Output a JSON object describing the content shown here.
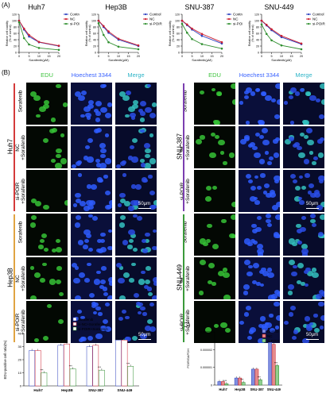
{
  "panels": {
    "a": "(A)",
    "b": "(B)",
    "c": "(C)"
  },
  "line_legend": [
    "Control",
    "NC",
    "si-POIR"
  ],
  "colors": {
    "control": "#2b3fbf",
    "nc": "#cc1f2f",
    "sipoir": "#2f8f2f",
    "edu": "#3ec43e",
    "hoechst": "#3a63ff",
    "merge": "#2fb5c8"
  },
  "chart_data": [
    {
      "type": "line",
      "title": "Huh7",
      "xlabel": "Sorafenib(μM)",
      "ylabel": "Relative cell viability (% of control)",
      "x": [
        0,
        2.5,
        5,
        10,
        20
      ],
      "xticks": [
        "0",
        "5",
        "10",
        "15",
        "20"
      ],
      "yticks": [
        "0",
        "20",
        "40",
        "60",
        "80",
        "100",
        "120"
      ],
      "xlim": [
        0,
        20
      ],
      "ylim": [
        0,
        120
      ],
      "series": [
        {
          "name": "Control",
          "values": [
            100,
            72,
            50,
            32,
            20
          ]
        },
        {
          "name": "NC",
          "values": [
            100,
            75,
            55,
            33,
            21
          ]
        },
        {
          "name": "si-POIR",
          "values": [
            95,
            45,
            25,
            14,
            8
          ]
        }
      ]
    },
    {
      "type": "line",
      "title": "Hep3B",
      "xlabel": "Sorafenib(μM)",
      "ylabel": "Relative cell viability (% of control)",
      "x": [
        0,
        2.5,
        5,
        10,
        20
      ],
      "xticks": [
        "0",
        "5",
        "10",
        "15",
        "20"
      ],
      "yticks": [
        "0",
        "20",
        "40",
        "60",
        "80",
        "100",
        "120"
      ],
      "xlim": [
        0,
        20
      ],
      "ylim": [
        0,
        120
      ],
      "series": [
        {
          "name": "Control",
          "values": [
            100,
            80,
            62,
            40,
            20
          ]
        },
        {
          "name": "NC",
          "values": [
            100,
            83,
            66,
            43,
            22
          ]
        },
        {
          "name": "si-POIR",
          "values": [
            92,
            55,
            32,
            18,
            10
          ]
        }
      ]
    },
    {
      "type": "line",
      "title": "SNU-387",
      "xlabel": "Sorafenib(μM)",
      "ylabel": "Relative cell viability (% of control)",
      "x": [
        0,
        2.5,
        5,
        10,
        20
      ],
      "xticks": [
        "0",
        "5",
        "10",
        "15",
        "20"
      ],
      "yticks": [
        "0",
        "20",
        "40",
        "60",
        "80",
        "100",
        "120"
      ],
      "xlim": [
        0,
        20
      ],
      "ylim": [
        0,
        120
      ],
      "series": [
        {
          "name": "Control",
          "values": [
            100,
            86,
            72,
            52,
            28
          ]
        },
        {
          "name": "NC",
          "values": [
            100,
            88,
            75,
            58,
            32
          ]
        },
        {
          "name": "si-POIR",
          "values": [
            90,
            62,
            42,
            26,
            12
          ]
        }
      ]
    },
    {
      "type": "line",
      "title": "SNU-449",
      "xlabel": "Sorafenib(μM)",
      "ylabel": "Relative cell viability (% of control)",
      "x": [
        0,
        2.5,
        5,
        10,
        20
      ],
      "xticks": [
        "0",
        "5",
        "10",
        "15",
        "20"
      ],
      "yticks": [
        "0",
        "20",
        "40",
        "60",
        "80",
        "100",
        "120"
      ],
      "xlim": [
        0,
        20
      ],
      "ylim": [
        0,
        120
      ],
      "series": [
        {
          "name": "Control",
          "values": [
            100,
            85,
            70,
            48,
            26
          ]
        },
        {
          "name": "NC",
          "values": [
            100,
            87,
            73,
            52,
            28
          ]
        },
        {
          "name": "si-POIR",
          "values": [
            88,
            58,
            38,
            22,
            10
          ]
        }
      ]
    },
    {
      "type": "bar",
      "title": "",
      "ylabel": "EDU-positive cell ratio(%)",
      "categories": [
        "Huh7",
        "Hep3B",
        "SNU-387",
        "SNU-449"
      ],
      "yticks": [
        "0",
        "10",
        "20",
        "30",
        "40"
      ],
      "ylim": [
        0,
        40
      ],
      "series": [
        {
          "name": "Sorafenib",
          "values": [
            27,
            31,
            30,
            35
          ]
        },
        {
          "name": "si-NC+Sorafenib",
          "values": [
            27,
            32,
            31,
            35
          ]
        },
        {
          "name": "si-POIR+Sorafenib",
          "values": [
            10,
            13,
            12,
            15
          ]
        }
      ],
      "annotations": [
        "***",
        "***",
        "***",
        "***"
      ]
    },
    {
      "type": "bar",
      "title": "",
      "ylabel": "POIR/GAPDH",
      "categories": [
        "Huh7",
        "Hep3B",
        "SNU-387",
        "SNU-449"
      ],
      "yticks": [
        "0",
        "0.000001",
        "0.000002",
        "0.000003"
      ],
      "ylim": [
        0,
        3e-06
      ],
      "series": [
        {
          "name": "Control",
          "values": [
            2e-07,
            4e-07,
            9e-07,
            2.4e-06
          ]
        },
        {
          "name": "NC",
          "values": [
            2e-07,
            4e-07,
            9e-07,
            2.3e-06
          ]
        },
        {
          "name": "si-POIR",
          "values": [
            8e-08,
            1.5e-07,
            3e-07,
            1.1e-06
          ]
        }
      ],
      "annotations": [
        "***",
        "***",
        "***",
        "***"
      ]
    }
  ],
  "micro": {
    "channels": [
      "EDU",
      "Hoechest 3344",
      "Merge"
    ],
    "left_cells": [
      "Huh7",
      "Hep3B"
    ],
    "right_cells": [
      "SNU-387",
      "SNU-449"
    ],
    "row_labels": [
      "Sorafenib",
      "NC\n+Sorafenib",
      "si-POIR\n+Sorafenib"
    ],
    "scale": "50μm"
  }
}
